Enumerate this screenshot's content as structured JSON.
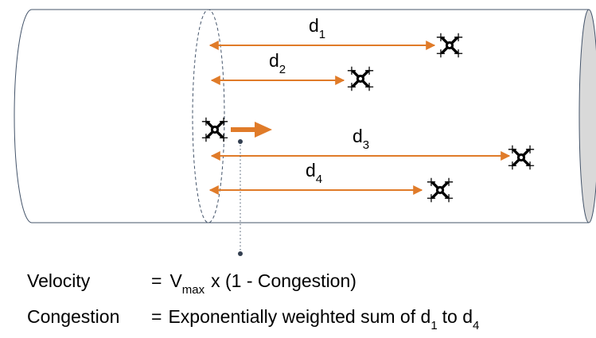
{
  "labels": [
    {
      "base": "d",
      "sub": "1"
    },
    {
      "base": "d",
      "sub": "2"
    },
    {
      "base": "d",
      "sub": "3"
    },
    {
      "base": "d",
      "sub": "4"
    }
  ],
  "formulas": {
    "velocity": {
      "term": "Velocity",
      "equals": "=",
      "base": "V",
      "sub": "max",
      "rest": "x (1 - Congestion)"
    },
    "congestion": {
      "term": "Congestion",
      "equals": "=",
      "text": "Exponentially weighted sum of d",
      "sub1": "1",
      "mid": "to d",
      "sub2": "4"
    }
  }
}
